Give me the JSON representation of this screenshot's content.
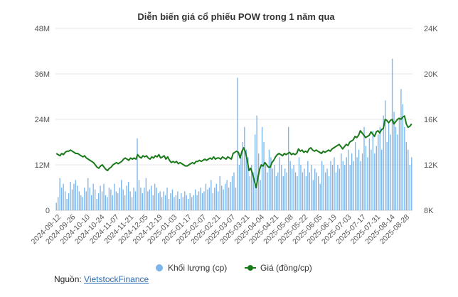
{
  "chart_data": {
    "type": "bar+line",
    "title": "Diễn biến giá cổ phiếu POW trong 1 năm qua",
    "left_axis": {
      "ticks": [
        "0",
        "12M",
        "24M",
        "36M",
        "48M"
      ],
      "min": 0,
      "max": 48000000
    },
    "right_axis": {
      "ticks": [
        "8K",
        "12K",
        "16K",
        "20K",
        "24K"
      ],
      "min": 8000,
      "max": 24000
    },
    "x_ticks": [
      "2024-09-12",
      "2024-09-26",
      "2024-10-10",
      "2024-10-24",
      "2024-11-07",
      "2024-11-21",
      "2024-12-05",
      "2024-12-19",
      "2025-01-03",
      "2025-01-17",
      "2025-02-07",
      "2025-02-21",
      "2025-03-07",
      "2025-03-21",
      "2025-04-04",
      "2025-04-21",
      "2025-05-08",
      "2025-05-22",
      "2025-06-05",
      "2025-06-19",
      "2025-07-03",
      "2025-07-17",
      "2025-07-31",
      "2025-08-14",
      "2025-08-28"
    ],
    "series": [
      {
        "name": "Khối lượng (cp)",
        "kind": "bar",
        "axis": "left",
        "color": "#7cb5ec",
        "values": [
          2000000,
          3500000,
          8500000,
          6000000,
          7000000,
          5000000,
          3000000,
          4500000,
          7500000,
          5500000,
          7000000,
          8000000,
          6500000,
          5000000,
          4000000,
          3500000,
          6000000,
          5000000,
          8500000,
          6000000,
          4000000,
          7000000,
          5500000,
          3000000,
          4500000,
          6500000,
          5000000,
          7000000,
          4000000,
          3500000,
          6000000,
          5500000,
          4000000,
          7000000,
          5000000,
          4500000,
          6000000,
          8000000,
          5500000,
          4000000,
          6500000,
          7500000,
          5000000,
          3500000,
          6000000,
          5000000,
          19000000,
          8000000,
          6000000,
          4500000,
          6000000,
          8500000,
          5000000,
          5500000,
          6500000,
          4000000,
          7000000,
          6000000,
          4500000,
          5000000,
          3500000,
          5000000,
          4000000,
          6000000,
          3000000,
          4500000,
          5500000,
          3500000,
          4000000,
          5000000,
          3000000,
          4500000,
          3500000,
          5000000,
          4000000,
          3000000,
          4500000,
          3500000,
          4000000,
          5500000,
          4000000,
          5000000,
          6000000,
          4500000,
          5000000,
          7000000,
          5500000,
          6000000,
          8000000,
          4500000,
          6000000,
          7000000,
          5000000,
          9000000,
          6500000,
          5500000,
          7000000,
          8000000,
          6000000,
          7500000,
          9000000,
          10000000,
          6000000,
          35000000,
          12000000,
          14000000,
          18000000,
          22000000,
          16000000,
          14000000,
          9000000,
          12000000,
          10000000,
          20000000,
          25000000,
          15000000,
          8000000,
          22000000,
          18000000,
          12000000,
          10000000,
          16000000,
          14000000,
          11000000,
          12000000,
          9000000,
          10000000,
          14000000,
          12000000,
          9000000,
          11000000,
          10000000,
          22000000,
          13000000,
          11000000,
          12000000,
          10000000,
          9000000,
          14000000,
          12000000,
          10000000,
          11000000,
          9000000,
          13000000,
          10000000,
          12000000,
          8000000,
          11000000,
          10000000,
          9000000,
          7000000,
          13000000,
          12000000,
          10000000,
          11000000,
          9000000,
          13000000,
          12000000,
          14000000,
          10000000,
          12000000,
          11000000,
          15000000,
          13000000,
          12000000,
          14000000,
          16000000,
          12000000,
          15000000,
          13000000,
          18000000,
          14000000,
          16000000,
          13000000,
          15000000,
          22000000,
          17000000,
          14000000,
          19000000,
          16000000,
          21000000,
          15000000,
          17000000,
          20000000,
          22000000,
          16000000,
          25000000,
          29000000,
          18000000,
          23000000,
          20000000,
          40000000,
          26000000,
          22000000,
          20000000,
          24000000,
          32000000,
          28000000,
          22000000,
          18000000,
          16000000,
          12000000,
          14000000
        ],
        "color_note": "light blue"
      },
      {
        "name": "Giá (đồng/cp)",
        "kind": "line",
        "axis": "right",
        "color": "#1a7a1a",
        "values": [
          13000,
          12900,
          12800,
          13000,
          12900,
          13100,
          13200,
          13200,
          13300,
          13200,
          13100,
          13000,
          13000,
          12900,
          12800,
          12700,
          12800,
          12600,
          12500,
          12400,
          12300,
          12200,
          12000,
          11800,
          11700,
          11900,
          12000,
          11800,
          11600,
          11500,
          11700,
          11800,
          12000,
          12100,
          12200,
          12100,
          12200,
          12300,
          12500,
          12600,
          12500,
          12400,
          12600,
          12500,
          12600,
          12500,
          12900,
          12700,
          12600,
          12800,
          12700,
          12800,
          12600,
          12500,
          12700,
          12600,
          12800,
          12700,
          12900,
          12600,
          12700,
          12800,
          12500,
          12700,
          12400,
          12200,
          12300,
          12200,
          12300,
          12100,
          12200,
          12100,
          12000,
          11900,
          11900,
          12000,
          12100,
          12200,
          12100,
          12300,
          12300,
          12400,
          12300,
          12400,
          12500,
          12400,
          12500,
          12600,
          12500,
          12700,
          12500,
          12600,
          12600,
          12500,
          12700,
          12600,
          12500,
          12700,
          12600,
          12500,
          13000,
          13100,
          13200,
          13100,
          12600,
          13200,
          13500,
          13100,
          12400,
          11500,
          11700,
          11200,
          10600,
          10000,
          10800,
          11600,
          12000,
          11900,
          12200,
          12000,
          11800,
          11800,
          12200,
          12400,
          12700,
          12900,
          13000,
          12900,
          12800,
          13000,
          12900,
          13000,
          13100,
          12900,
          13000,
          12900,
          13000,
          13400,
          13200,
          13300,
          13100,
          13200,
          13100,
          13400,
          13500,
          13300,
          13200,
          13300,
          13200,
          13100,
          13000,
          13200,
          13100,
          13200,
          13300,
          13200,
          13400,
          13500,
          13600,
          13700,
          13800,
          13600,
          13400,
          13600,
          13800,
          13700,
          14000,
          14100,
          14200,
          14500,
          14400,
          14600,
          15000,
          14800,
          14600,
          14400,
          14500,
          14600,
          14900,
          14700,
          14500,
          14900,
          15000,
          14800,
          15100,
          15200,
          16000,
          15900,
          15700,
          15900,
          16000,
          15600,
          15800,
          16000,
          16100,
          16000,
          16200,
          16300,
          15600,
          15300,
          15400,
          15600
        ]
      }
    ],
    "legend": [
      {
        "label": "Khối lượng (cp)",
        "color": "#7cb5ec",
        "marker": "circle"
      },
      {
        "label": "Giá (đồng/cp)",
        "color": "#1a7a1a",
        "marker": "line-circle"
      }
    ],
    "legend_placement": "bottom-center",
    "grid": true
  },
  "source": {
    "label": "Nguồn:",
    "link_text": "VietstockFinance"
  }
}
